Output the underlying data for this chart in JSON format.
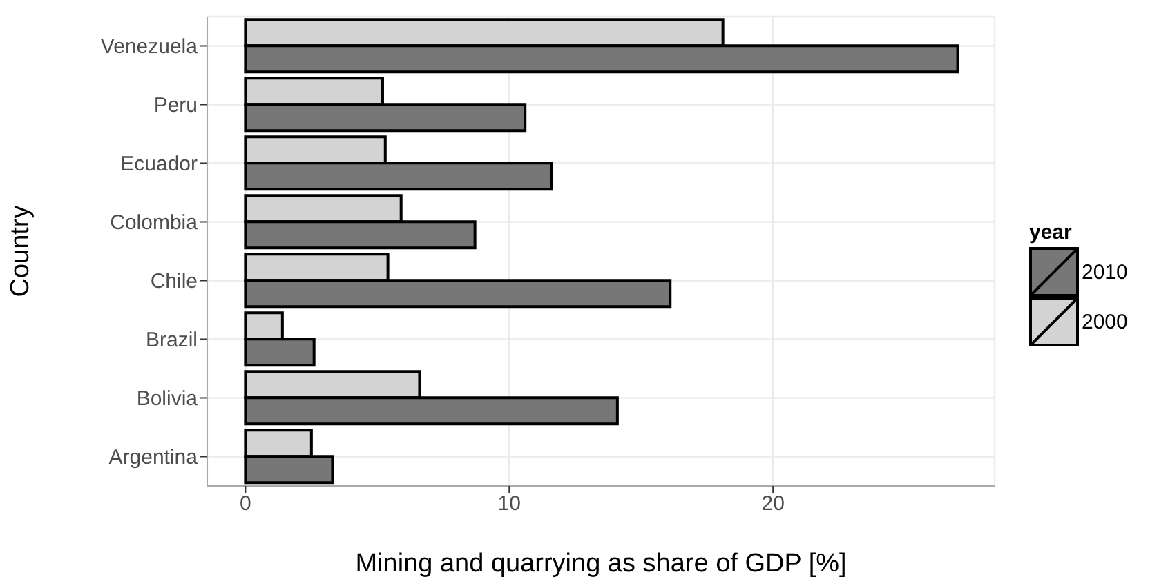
{
  "chart_data": {
    "type": "bar",
    "orientation": "horizontal",
    "xlabel": "Mining and quarrying as share of GDP [%]",
    "ylabel": "Country",
    "legend_title": "year",
    "legend": "right",
    "grid": true,
    "categories": [
      "Venezuela",
      "Peru",
      "Ecuador",
      "Colombia",
      "Chile",
      "Brazil",
      "Bolivia",
      "Argentina"
    ],
    "xlim": [
      -1.45,
      28.4
    ],
    "xticks": [
      0,
      10,
      20
    ],
    "series": [
      {
        "name": "2000",
        "color": "#d3d3d3",
        "values": [
          18.1,
          5.2,
          5.3,
          5.9,
          5.4,
          1.4,
          6.6,
          2.5
        ]
      },
      {
        "name": "2010",
        "color": "#777777",
        "values": [
          27.0,
          10.6,
          11.6,
          8.7,
          16.1,
          2.6,
          14.1,
          3.3
        ]
      }
    ]
  }
}
